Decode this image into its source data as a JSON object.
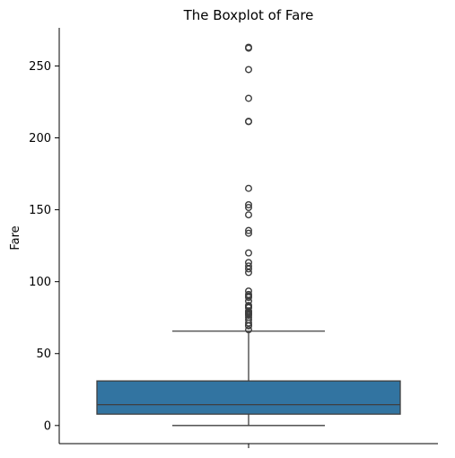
{
  "chart_data": {
    "type": "boxplot",
    "title": "The Boxplot of Fare",
    "xlabel": "",
    "ylabel": "Fare",
    "ylim": [
      -12.6,
      276.5
    ],
    "yticks": [
      0,
      50,
      100,
      150,
      200,
      250
    ],
    "ytick_labels": [
      "0",
      "50",
      "100",
      "150",
      "200",
      "250"
    ],
    "box": {
      "whisker_low": 0,
      "q1": 7.9,
      "median": 14.5,
      "q3": 31.0,
      "whisker_high": 65.6
    },
    "outliers": [
      66.6,
      69.3,
      69.6,
      71.3,
      73.5,
      75.3,
      76.7,
      77.3,
      77.9,
      78.3,
      79.2,
      79.7,
      81.9,
      82.2,
      83.2,
      83.5,
      86.5,
      89.1,
      90.0,
      91.1,
      93.5,
      106.4,
      108.9,
      110.9,
      113.3,
      120.0,
      133.7,
      135.6,
      146.5,
      151.6,
      153.5,
      164.9,
      211.3,
      211.5,
      227.5,
      247.5,
      262.4,
      263.0
    ],
    "colors": {
      "box_fill": "#3274a1",
      "line": "#3f3f3f"
    },
    "grid": false
  }
}
